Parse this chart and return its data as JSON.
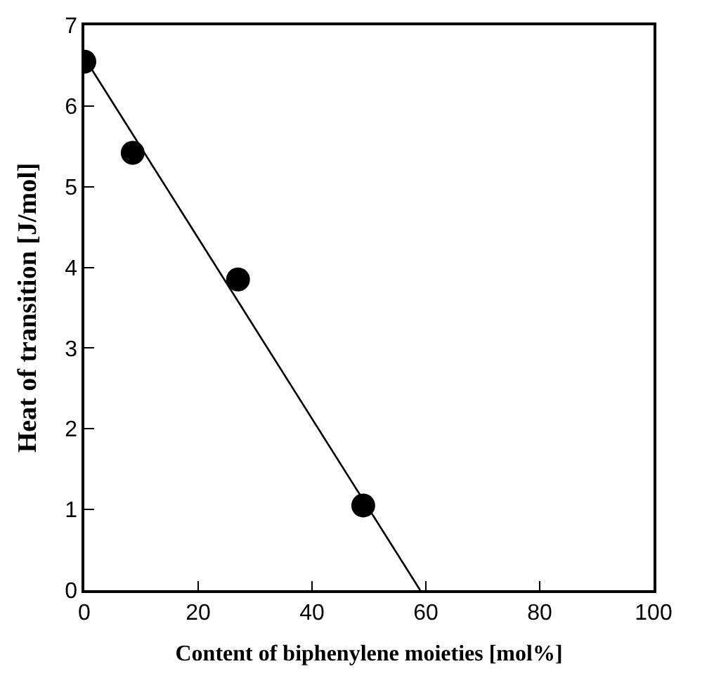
{
  "chart_data": {
    "type": "scatter",
    "xlabel": "Content of biphenylene moieties [mol%]",
    "ylabel": "Heat of transition [J/mol]",
    "xlim": [
      0,
      100
    ],
    "xticks": [
      0,
      20,
      40,
      60,
      80,
      100
    ],
    "ylim": [
      0,
      7
    ],
    "yticks": [
      0,
      1,
      2,
      3,
      4,
      5,
      6,
      7
    ],
    "legend": false,
    "series": [
      {
        "color": "#000000",
        "marker": "circle",
        "x": [
          0,
          8.5,
          27,
          49
        ],
        "values": [
          6.55,
          5.42,
          3.85,
          1.05
        ]
      },
      {
        "type": "line",
        "color": "#000000",
        "marker": "none",
        "line_style": "solid",
        "x": [
          0,
          59
        ],
        "values": [
          6.6,
          0
        ]
      }
    ]
  }
}
